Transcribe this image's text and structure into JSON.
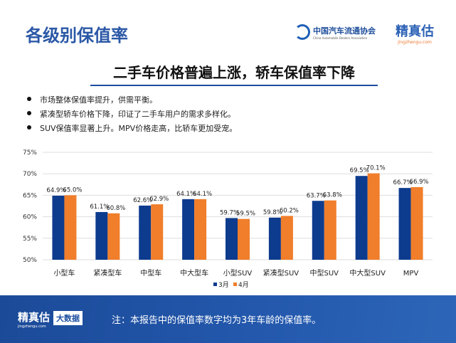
{
  "header": {
    "title": "各级别保值率",
    "org_name": "中国汽车流通协会",
    "org_name_en": "China Automobile Dealers Association",
    "brand": "精真估",
    "brand_url": "jingzhengu.com"
  },
  "subtitle": "二手车价格普遍上涨，轿车保值率下降",
  "bullets": [
    "市场整体保值率提升，供需平衡。",
    "紧凑型轿车价格下降，印证了二手车用户的需求多样化。",
    "SUV保值率显著上升。MPV价格走高，比轿车更加受宠。"
  ],
  "chart_data": {
    "type": "bar",
    "categories": [
      "小型车",
      "紧凑型车",
      "中型车",
      "中大型车",
      "小型SUV",
      "紧凑型SUV",
      "中型SUV",
      "中大型SUV",
      "MPV"
    ],
    "series": [
      {
        "name": "3月",
        "color": "#0d3b8e",
        "values": [
          64.9,
          61.1,
          62.6,
          64.1,
          59.7,
          59.8,
          63.7,
          69.5,
          66.7
        ],
        "labels": [
          "64.9%",
          "61.1%",
          "62.6%",
          "64.1%",
          "59.7%",
          "59.8%",
          "63.7%",
          "69.5%",
          "66.7%"
        ]
      },
      {
        "name": "4月",
        "color": "#f07e2b",
        "values": [
          65.0,
          60.8,
          62.9,
          64.1,
          59.5,
          60.2,
          63.8,
          70.1,
          66.9
        ],
        "labels": [
          "65.0%",
          "60.8%",
          "62.9%",
          "64.1%",
          "59.5%",
          "60.2%",
          "63.8%",
          "70.1%",
          "66.9%"
        ]
      }
    ],
    "yticks": [
      "50%",
      "55%",
      "60%",
      "65%",
      "70%",
      "75%"
    ],
    "ylim": [
      50,
      75
    ],
    "grid": true,
    "legend": "bottom"
  },
  "footer": {
    "brand": "精真估",
    "brand_url": "jingzhengu.com",
    "tag": "大数据",
    "note": "注：本报告中的保值率数字均为3年车龄的保值率。"
  }
}
